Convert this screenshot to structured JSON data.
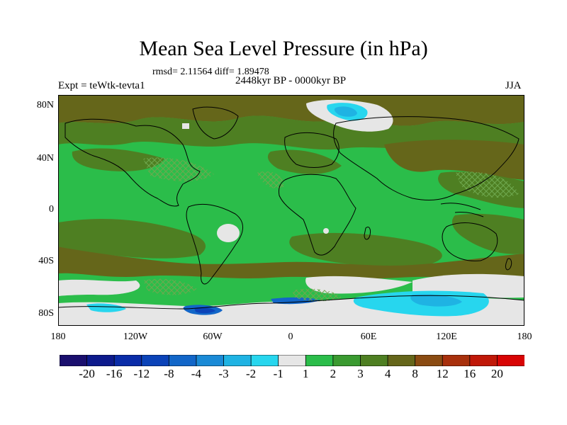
{
  "title": "Mean Sea Level Pressure (in hPa)",
  "stats": "rmsd= 2.11564 diff= 1.89478",
  "period": "2448kyr BP - 0000kyr BP",
  "experiment": "Expt = teWtk-tevta1",
  "season": "JJA",
  "lat_labels": [
    "80N",
    "40N",
    "0",
    "40S",
    "80S"
  ],
  "lon_labels": [
    "180",
    "120W",
    "60W",
    "0",
    "60E",
    "120E",
    "180"
  ],
  "colorbar": {
    "labels": [
      "-20",
      "-16",
      "-12",
      "-8",
      "-4",
      "-3",
      "-2",
      "-1",
      "1",
      "2",
      "3",
      "4",
      "8",
      "12",
      "16",
      "20"
    ],
    "colors": [
      "#1a0f6e",
      "#0d1a8c",
      "#0a2ca8",
      "#0b43b8",
      "#1266c8",
      "#1a8ad6",
      "#1fb3e3",
      "#27d6ee",
      "#e6e6e6",
      "#2bbd4a",
      "#3a9a30",
      "#4e7f22",
      "#65661a",
      "#8a4b12",
      "#a8300c",
      "#c01808",
      "#d80404"
    ]
  },
  "colors": {
    "land_outline": "#000000",
    "stipple": "#6fa84e"
  }
}
